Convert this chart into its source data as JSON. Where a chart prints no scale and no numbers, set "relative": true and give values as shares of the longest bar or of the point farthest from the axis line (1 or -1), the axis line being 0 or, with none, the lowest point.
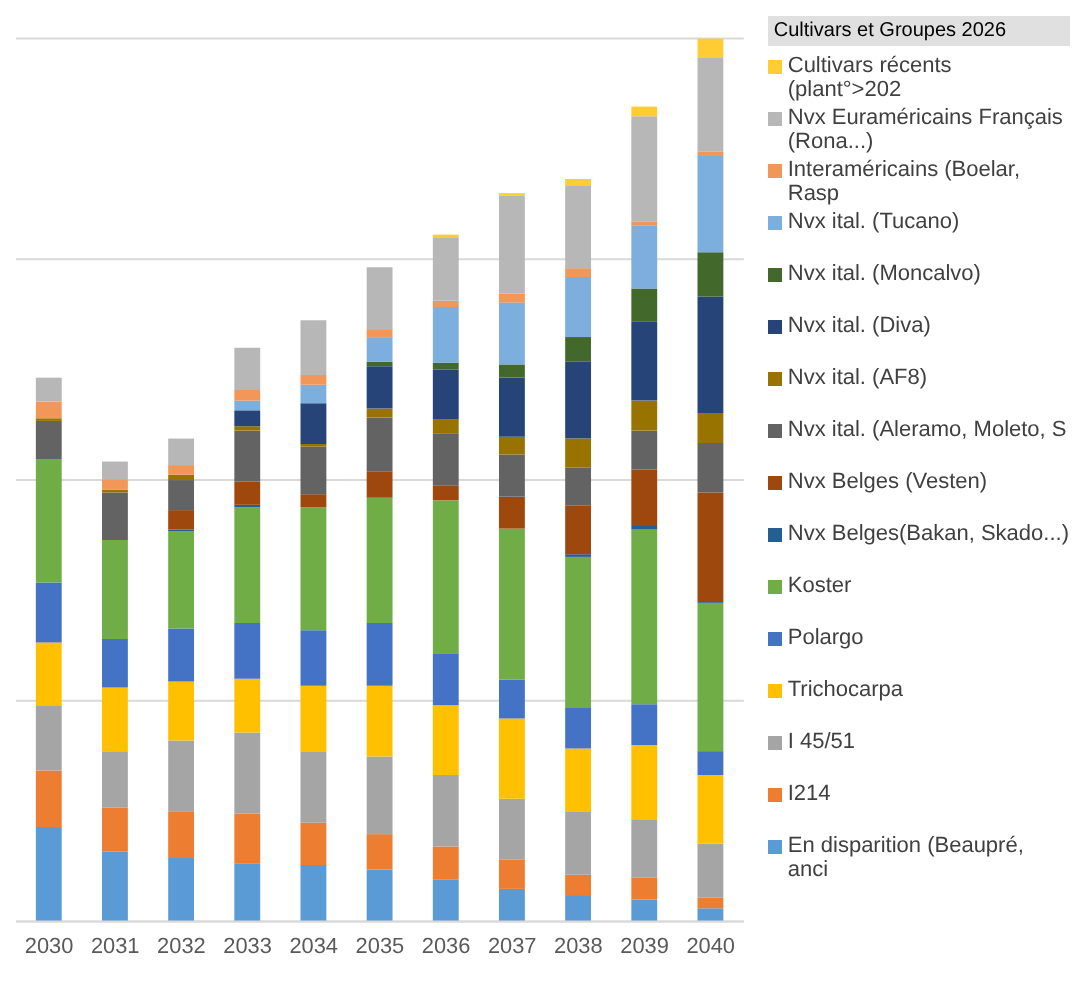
{
  "chart_data": {
    "type": "bar",
    "stacked": true,
    "relative": true,
    "grid": "y",
    "legend": "right",
    "legend_title": "Cultivars et Groupes 2026",
    "categories": [
      "2030",
      "2031",
      "2032",
      "2033",
      "2034",
      "2035",
      "2036",
      "2037",
      "2038",
      "2039",
      "2040"
    ],
    "series": [
      {
        "name": "En disparition (Beaupré, anci",
        "color": "#5b9bd5",
        "values": [
          0.107,
          0.079,
          0.072,
          0.066,
          0.064,
          0.059,
          0.048,
          0.037,
          0.03,
          0.025,
          0.015
        ]
      },
      {
        "name": "I214",
        "color": "#ed7d31",
        "values": [
          0.064,
          0.05,
          0.053,
          0.056,
          0.048,
          0.04,
          0.037,
          0.033,
          0.023,
          0.025,
          0.012
        ]
      },
      {
        "name": "I 45/51",
        "color": "#a5a5a5",
        "values": [
          0.074,
          0.064,
          0.08,
          0.092,
          0.08,
          0.088,
          0.081,
          0.069,
          0.071,
          0.065,
          0.061
        ]
      },
      {
        "name": "Trichocarpa",
        "color": "#ffc000",
        "values": [
          0.071,
          0.072,
          0.067,
          0.061,
          0.075,
          0.08,
          0.079,
          0.091,
          0.072,
          0.085,
          0.078
        ]
      },
      {
        "name": "Polargo",
        "color": "#4472c4",
        "values": [
          0.068,
          0.055,
          0.06,
          0.063,
          0.063,
          0.071,
          0.059,
          0.044,
          0.046,
          0.046,
          0.027
        ]
      },
      {
        "name": "Koster",
        "color": "#70ad47",
        "values": [
          0.14,
          0.112,
          0.11,
          0.131,
          0.139,
          0.142,
          0.173,
          0.171,
          0.171,
          0.198,
          0.168
        ]
      },
      {
        "name": "Nvx Belges(Bakan, Skado...)",
        "color": "#255e91",
        "values": [
          0,
          0,
          0.002,
          0.003,
          0,
          0,
          0,
          0,
          0.003,
          0.004,
          0.002
        ]
      },
      {
        "name": "Nvx Belges (Vesten)",
        "color": "#9e480e",
        "values": [
          0,
          0,
          0.022,
          0.026,
          0.015,
          0.03,
          0.017,
          0.036,
          0.055,
          0.064,
          0.123
        ]
      },
      {
        "name": "Nvx ital. (Aleramo, Moleto, S",
        "color": "#636363",
        "values": [
          0.043,
          0.054,
          0.034,
          0.058,
          0.054,
          0.061,
          0.059,
          0.048,
          0.043,
          0.044,
          0.056
        ]
      },
      {
        "name": "Nvx ital. (AF8)",
        "color": "#997300",
        "values": [
          0.003,
          0.003,
          0.006,
          0.005,
          0.003,
          0.01,
          0.016,
          0.02,
          0.033,
          0.034,
          0.034
        ]
      },
      {
        "name": "Nvx ital. (Diva)",
        "color": "#264478",
        "values": [
          0,
          0,
          0,
          0.018,
          0.046,
          0.048,
          0.056,
          0.067,
          0.087,
          0.09,
          0.132
        ]
      },
      {
        "name": "Nvx ital. (Moncalvo)",
        "color": "#43682b",
        "values": [
          0,
          0,
          0,
          0,
          0,
          0.005,
          0.008,
          0.015,
          0.028,
          0.037,
          0.05
        ]
      },
      {
        "name": "Nvx ital. (Tucano)",
        "color": "#7cafdd",
        "values": [
          0,
          0,
          0,
          0.011,
          0.021,
          0.027,
          0.063,
          0.07,
          0.068,
          0.071,
          0.109
        ]
      },
      {
        "name": "Interaméricains (Boelar, Rasp",
        "color": "#f1975a",
        "values": [
          0.019,
          0.012,
          0.011,
          0.012,
          0.011,
          0.01,
          0.007,
          0.01,
          0.01,
          0.005,
          0.005
        ]
      },
      {
        "name": "Nvx Euraméricains Français (Rona...)",
        "color": "#b7b7b7",
        "values": [
          0.027,
          0.02,
          0.03,
          0.048,
          0.062,
          0.07,
          0.072,
          0.111,
          0.094,
          0.119,
          0.107
        ]
      },
      {
        "name": "Cultivars récents (plant°>202",
        "color": "#ffcd33",
        "values": [
          0,
          0,
          0,
          0,
          0,
          0,
          0.003,
          0.003,
          0.007,
          0.011,
          0.021
        ]
      }
    ]
  }
}
